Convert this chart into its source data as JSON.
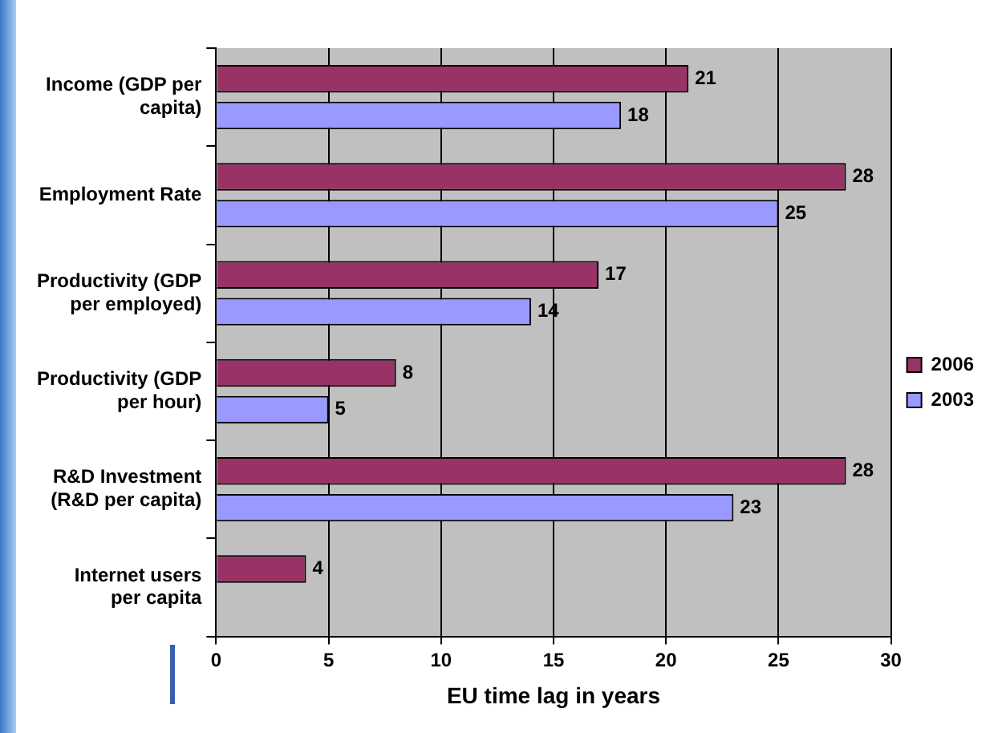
{
  "chart_data": {
    "type": "bar",
    "orientation": "horizontal",
    "xlabel": "EU time lag in years",
    "categories": [
      "Income (GDP per capita)",
      "Employment Rate",
      "Productivity (GDP per employed)",
      "Productivity (GDP per hour)",
      "R&D Investment (R&D per capita)",
      "Internet users per capita"
    ],
    "series": [
      {
        "name": "2006",
        "color": "#993366",
        "values": [
          21,
          28,
          17,
          8,
          28,
          4
        ]
      },
      {
        "name": "2003",
        "color": "#9999ff",
        "values": [
          18,
          25,
          14,
          5,
          23,
          null
        ]
      }
    ],
    "xlim": [
      0,
      30
    ],
    "xticks": [
      0,
      5,
      10,
      15,
      20,
      25,
      30
    ],
    "grid": "x",
    "legend": "right",
    "data_labels": true
  }
}
